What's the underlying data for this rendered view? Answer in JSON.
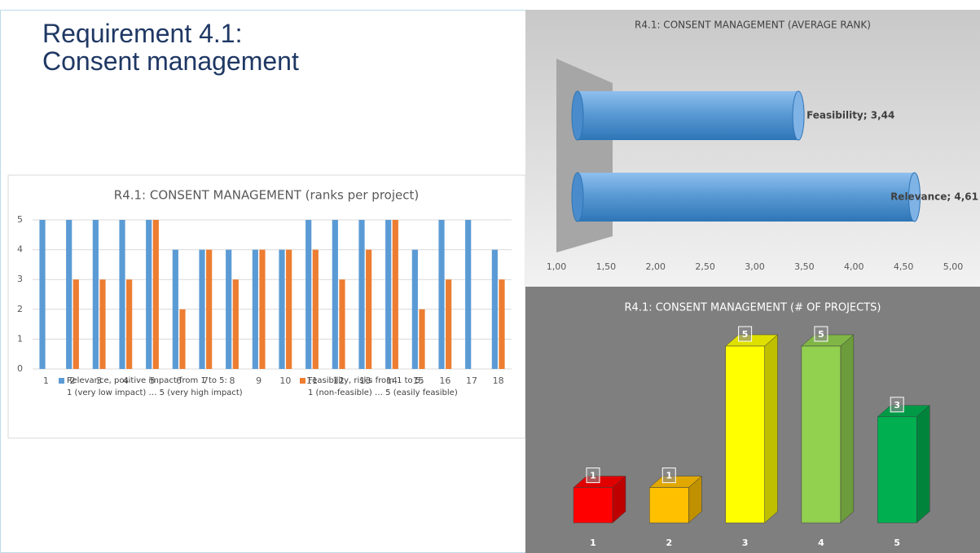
{
  "slide": {
    "title": "Requirement 4.1:\nConsent management"
  },
  "chart_data": [
    {
      "type": "bar",
      "title": "R4.1: CONSENT MANAGEMENT (ranks per project)",
      "categories": [
        "1",
        "2",
        "3",
        "4",
        "5",
        "6",
        "7",
        "8",
        "9",
        "10",
        "11",
        "12",
        "13",
        "14",
        "15",
        "16",
        "17",
        "18"
      ],
      "series": [
        {
          "name": "Relevance, positive impact from 1 to 5:\n1 (very low impact) … 5 (very high impact)",
          "color": "#5b9bd5",
          "values": [
            5,
            5,
            5,
            5,
            5,
            4,
            4,
            4,
            4,
            4,
            5,
            5,
            5,
            5,
            4,
            5,
            5,
            4
          ]
        },
        {
          "name": "Feasibility, risks from 1 to 5:\n1 (non-feasible) … 5 (easily feasible)",
          "color": "#ed7d31",
          "values": [
            null,
            3,
            3,
            3,
            5,
            2,
            4,
            3,
            4,
            4,
            4,
            3,
            4,
            5,
            2,
            3,
            null,
            3
          ]
        }
      ],
      "ylim": [
        0,
        5
      ],
      "yticks": [
        0,
        1,
        2,
        3,
        4,
        5
      ],
      "grid": true,
      "legend": "bottom"
    },
    {
      "type": "hbar",
      "title": "R4.1: CONSENT MANAGEMENT (AVERAGE RANK)",
      "categories": [
        "Feasibility",
        "Relevance"
      ],
      "values": [
        3.44,
        4.61
      ],
      "value_labels": [
        "Feasibility; 3,44",
        "Relevance; 4,61"
      ],
      "color": "#5b9bd5",
      "xlim": [
        1,
        5
      ],
      "xticks": [
        {
          "value": 1,
          "label": "1,00"
        },
        {
          "value": 1.5,
          "label": "1,50"
        },
        {
          "value": 2,
          "label": "2,00"
        },
        {
          "value": 2.5,
          "label": "2,50"
        },
        {
          "value": 3,
          "label": "3,00"
        },
        {
          "value": 3.5,
          "label": "3,50"
        },
        {
          "value": 4,
          "label": "4,00"
        },
        {
          "value": 4.5,
          "label": "4,50"
        },
        {
          "value": 5,
          "label": "5,00"
        }
      ]
    },
    {
      "type": "bar3d",
      "title": "R4.1: CONSENT MANAGEMENT (# OF PROJECTS)",
      "categories": [
        "1",
        "2",
        "3",
        "4",
        "5"
      ],
      "values": [
        1,
        1,
        5,
        5,
        3
      ],
      "colors": [
        "#ff0000",
        "#ffc000",
        "#ffff00",
        "#92d050",
        "#00b050"
      ]
    }
  ]
}
